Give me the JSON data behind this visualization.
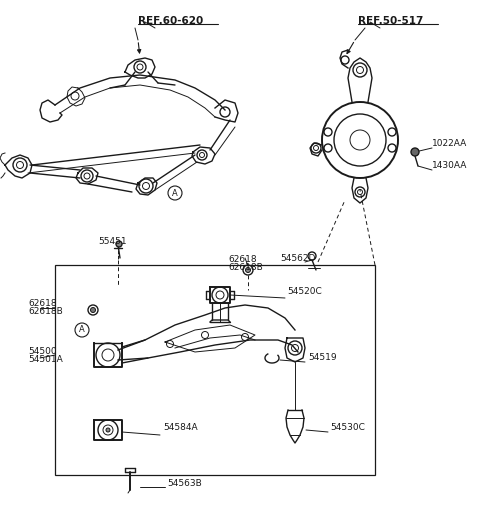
{
  "bg_color": "#ffffff",
  "line_color": "#1a1a1a",
  "text_color": "#1a1a1a",
  "labels": {
    "ref60620": "REF.60-620",
    "ref50517": "REF.50-517",
    "p55451": "55451",
    "p62618_top": "62618",
    "p62618b_top": "62618B",
    "p54562d": "54562D",
    "p1022aa": "1022AA",
    "p1430aa": "1430AA",
    "p54520c": "54520C",
    "p62618_bot": "62618",
    "p62618b_bot": "62618B",
    "p54519": "54519",
    "p54500": "54500",
    "p54501a": "54501A",
    "p54530c": "54530C",
    "p54584a": "54584A",
    "p54563b": "54563B"
  },
  "font_sizes": {
    "ref_label": 7.5,
    "part_label": 6.5,
    "circled_a": 6
  }
}
